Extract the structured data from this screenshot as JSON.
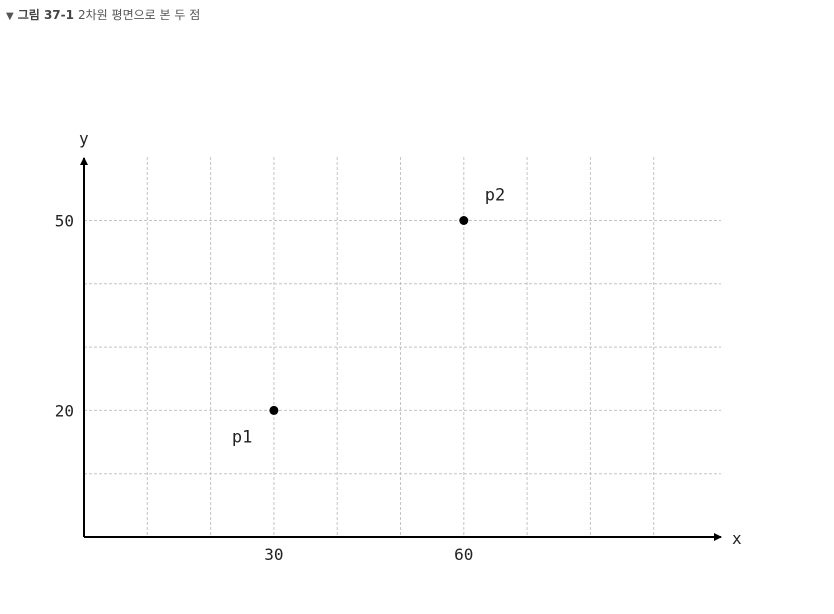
{
  "caption": {
    "marker": "▼",
    "number": "그림 37-1",
    "text": "2차원 평면으로 본 두 점"
  },
  "chart_data": {
    "type": "scatter",
    "title": "",
    "xlabel": "x",
    "ylabel": "y",
    "xlim": [
      0,
      100
    ],
    "ylim": [
      0,
      60
    ],
    "grid": true,
    "x_grid_step": 10,
    "y_grid_step": 10,
    "x_ticks": [
      30,
      60
    ],
    "y_ticks": [
      20,
      50
    ],
    "points": [
      {
        "label": "p1",
        "x": 30,
        "y": 20
      },
      {
        "label": "p2",
        "x": 60,
        "y": 50
      }
    ],
    "colors": {
      "axis": "#000000",
      "grid": "#c4c4c4",
      "point": "#000000"
    }
  }
}
